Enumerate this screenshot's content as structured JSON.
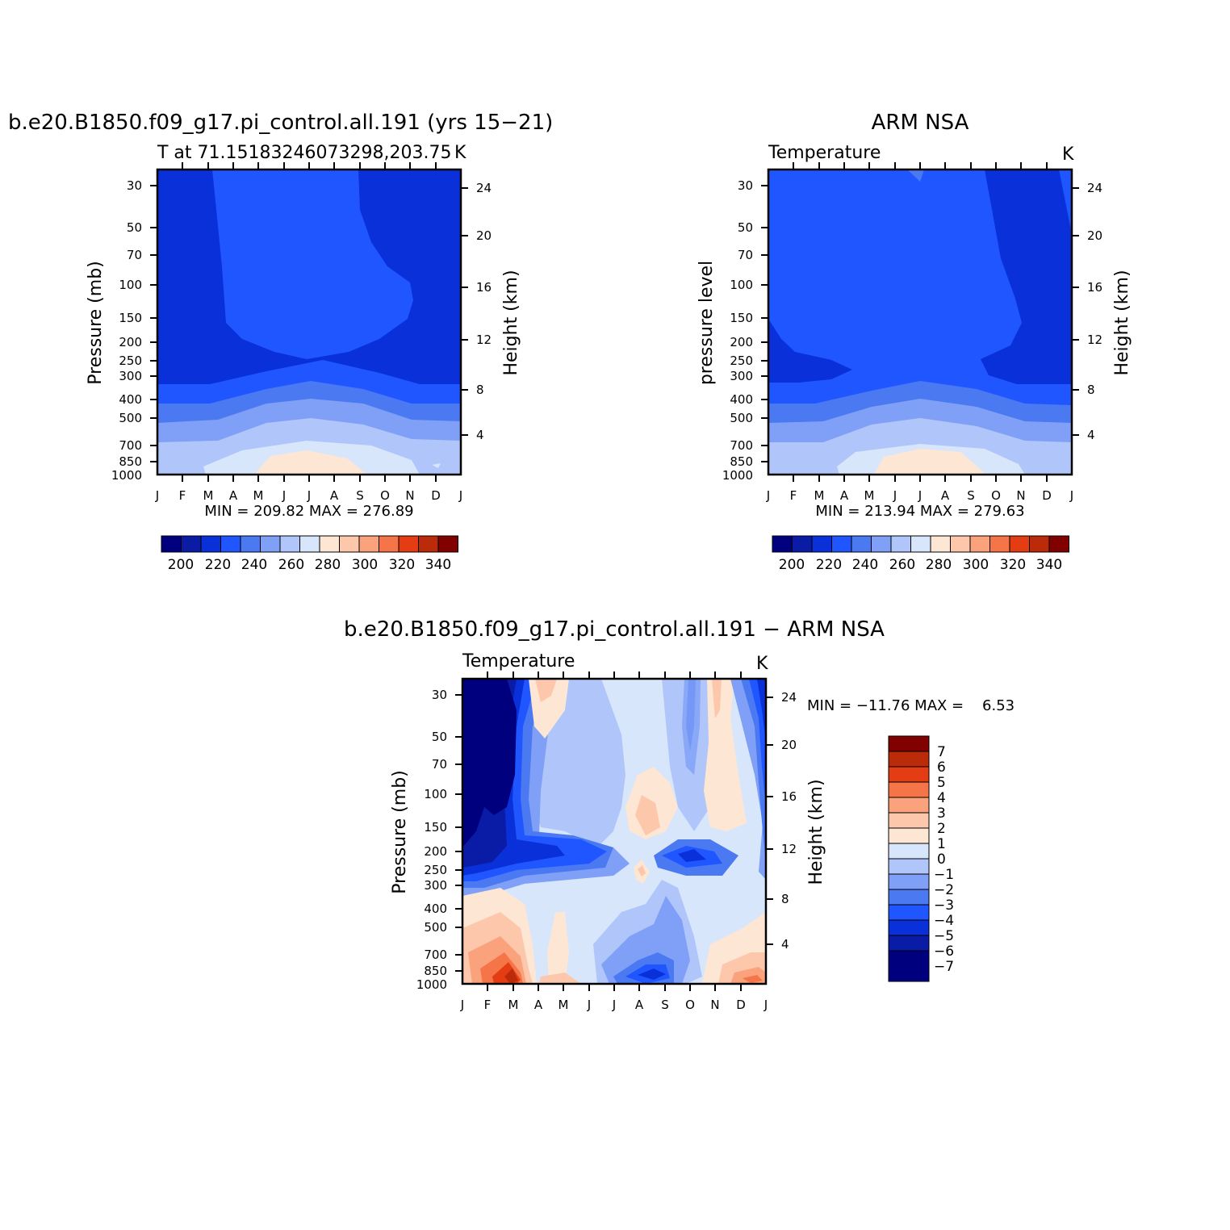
{
  "chart_data": [
    {
      "type": "heatmap",
      "title": "b.e20.B1850.f09_g17.pi_control.all.191 (yrs 15−21)",
      "subtitle_left": "T at 71.15183246073298,203.75",
      "subtitle_right": "K",
      "ylabel": "Pressure (mb)",
      "ylabel_right": "Height (km)",
      "x_ticks": [
        "J",
        "F",
        "M",
        "A",
        "M",
        "J",
        "J",
        "A",
        "S",
        "O",
        "N",
        "D",
        "J"
      ],
      "y_ticks": [
        "30",
        "50",
        "70",
        "100",
        "150",
        "200",
        "250",
        "300",
        "400",
        "500",
        "700",
        "850",
        "1000"
      ],
      "y_values": [
        30,
        50,
        70,
        100,
        150,
        200,
        250,
        300,
        400,
        500,
        700,
        850,
        1000
      ],
      "y_right_ticks": [
        "24",
        "20",
        "16",
        "12",
        "8",
        "4"
      ],
      "y_right_values": [
        24,
        20,
        16,
        12,
        8,
        4
      ],
      "minmax": "MIN = 209.82 MAX = 276.89",
      "colorbar": {
        "labels": [
          "200",
          "220",
          "240",
          "260",
          "280",
          "300",
          "320",
          "340"
        ],
        "colors": [
          "#00007f",
          "#0a1ca6",
          "#0930d9",
          "#1f56ff",
          "#4a79f2",
          "#7fa0f6",
          "#b0c6fa",
          "#d8e6fc",
          "#fde6d4",
          "#fcc7ab",
          "#f9a27c",
          "#f57448",
          "#e53d13",
          "#bc2b09",
          "#810000"
        ]
      }
    },
    {
      "type": "heatmap",
      "title": "ARM NSA",
      "subtitle_left": "Temperature",
      "subtitle_right": "K",
      "ylabel": "pressure level",
      "ylabel_right": "Height (km)",
      "x_ticks": [
        "J",
        "F",
        "M",
        "A",
        "M",
        "J",
        "J",
        "A",
        "S",
        "O",
        "N",
        "D",
        "J"
      ],
      "y_ticks": [
        "30",
        "50",
        "70",
        "100",
        "150",
        "200",
        "250",
        "300",
        "400",
        "500",
        "700",
        "850",
        "1000"
      ],
      "y_values": [
        30,
        50,
        70,
        100,
        150,
        200,
        250,
        300,
        400,
        500,
        700,
        850,
        1000
      ],
      "y_right_ticks": [
        "24",
        "20",
        "16",
        "12",
        "8",
        "4"
      ],
      "y_right_values": [
        24,
        20,
        16,
        12,
        8,
        4
      ],
      "minmax": "MIN = 213.94 MAX = 279.63",
      "colorbar": {
        "labels": [
          "200",
          "220",
          "240",
          "260",
          "280",
          "300",
          "320",
          "340"
        ],
        "colors": [
          "#00007f",
          "#0a1ca6",
          "#0930d9",
          "#1f56ff",
          "#4a79f2",
          "#7fa0f6",
          "#b0c6fa",
          "#d8e6fc",
          "#fde6d4",
          "#fcc7ab",
          "#f9a27c",
          "#f57448",
          "#e53d13",
          "#bc2b09",
          "#810000"
        ]
      }
    },
    {
      "type": "heatmap",
      "title": "b.e20.B1850.f09_g17.pi_control.all.191 − ARM NSA",
      "subtitle_left": "Temperature",
      "subtitle_right": "K",
      "ylabel": "Pressure (mb)",
      "ylabel_right": "Height (km)",
      "x_ticks": [
        "J",
        "F",
        "M",
        "A",
        "M",
        "J",
        "J",
        "A",
        "S",
        "O",
        "N",
        "D",
        "J"
      ],
      "y_ticks": [
        "30",
        "50",
        "70",
        "100",
        "150",
        "200",
        "250",
        "300",
        "400",
        "500",
        "700",
        "850",
        "1000"
      ],
      "y_values": [
        30,
        50,
        70,
        100,
        150,
        200,
        250,
        300,
        400,
        500,
        700,
        850,
        1000
      ],
      "y_right_ticks": [
        "24",
        "20",
        "16",
        "12",
        "8",
        "4"
      ],
      "y_right_values": [
        24,
        20,
        16,
        12,
        8,
        4
      ],
      "minmax": "MIN = −11.76 MAX =    6.53",
      "colorbar": {
        "labels": [
          "7",
          "6",
          "5",
          "4",
          "3",
          "2",
          "1",
          "0",
          "−1",
          "−2",
          "−3",
          "−4",
          "−5",
          "−6",
          "−7"
        ],
        "colors": [
          "#810000",
          "#bc2b09",
          "#e53d13",
          "#f57448",
          "#f9a27c",
          "#fcc7ab",
          "#fde6d4",
          "#d8e6fc",
          "#b0c6fa",
          "#7fa0f6",
          "#4a79f2",
          "#1f56ff",
          "#0930d9",
          "#0a1ca6",
          "#00007f"
        ]
      }
    }
  ]
}
